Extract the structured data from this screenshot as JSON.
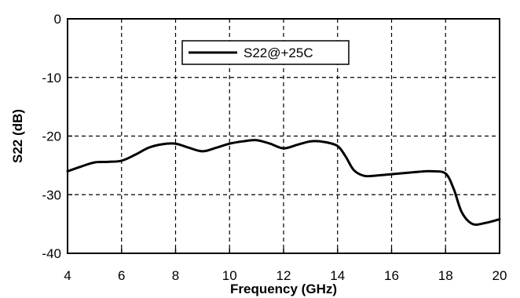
{
  "chart_data": {
    "type": "line",
    "xlabel": "Frequency (GHz)",
    "ylabel": "S22 (dB)",
    "xlim": [
      4,
      20
    ],
    "ylim": [
      -40,
      0
    ],
    "x_ticks": [
      4,
      6,
      8,
      10,
      12,
      14,
      16,
      18,
      20
    ],
    "y_ticks": [
      0,
      -10,
      -20,
      -30,
      -40
    ],
    "grid": true,
    "legend_position": "top-center",
    "series": [
      {
        "name": "S22@+25C",
        "color": "#000000",
        "x": [
          4,
          4.5,
          5,
          5.5,
          6,
          6.5,
          7,
          7.5,
          8,
          8.5,
          9,
          9.5,
          10,
          10.5,
          11,
          11.5,
          12,
          12.5,
          13,
          13.5,
          14,
          14.3,
          14.6,
          15,
          15.5,
          16,
          16.5,
          17,
          17.5,
          18,
          18.3,
          18.6,
          19,
          19.5,
          20
        ],
        "y": [
          -26,
          -25.2,
          -24.5,
          -24.4,
          -24.2,
          -23.2,
          -22,
          -21.4,
          -21.3,
          -22,
          -22.6,
          -22,
          -21.3,
          -20.9,
          -20.7,
          -21.3,
          -22.1,
          -21.5,
          -20.9,
          -21,
          -21.7,
          -23.5,
          -25.8,
          -26.8,
          -26.7,
          -26.5,
          -26.3,
          -26.1,
          -26,
          -26.4,
          -29,
          -33,
          -35,
          -34.8,
          -34.2
        ]
      }
    ]
  }
}
